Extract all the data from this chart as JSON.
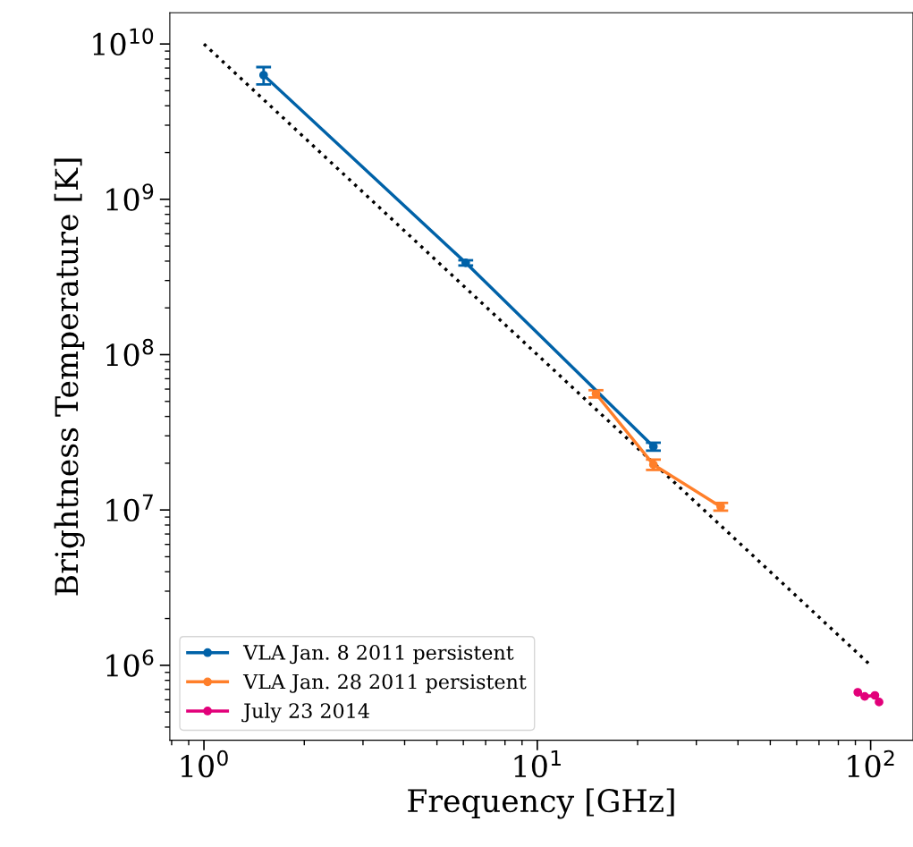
{
  "chart_data": {
    "type": "line",
    "xlabel": "Frequency [GHz]",
    "ylabel": "Brightness Temperature [K]",
    "log": "xy",
    "legend": "bottom left",
    "marker": "circle",
    "grid": false,
    "xlim": [
      0.79,
      134
    ],
    "ylim": [
      329000,
      15900000000
    ],
    "xticks": [
      {
        "value": 1,
        "label": "10$^{0}$"
      },
      {
        "value": 10,
        "label": "10$^{1}$"
      },
      {
        "value": 100,
        "label": "10$^{2}$"
      }
    ],
    "yticks": [
      {
        "value": 1000000,
        "label": "10$^{6}$"
      },
      {
        "value": 10000000,
        "label": "10$^{7}$"
      },
      {
        "value": 100000000,
        "label": "10$^{8}$"
      },
      {
        "value": 1000000000,
        "label": "10$^{9}$"
      },
      {
        "value": 10000000000,
        "label": "10$^{10}$"
      }
    ],
    "series": [
      {
        "name": "VLA Jan. 8 2011 persistent",
        "color": "#0062a8",
        "x": [
          1.51,
          6.1,
          22.3
        ],
        "values": [
          6300000000,
          390000000,
          25600000
        ],
        "errors": [
          800000000,
          15000000,
          1500000
        ]
      },
      {
        "name": "VLA Jan. 28 2011 persistent",
        "color": "#ff7f2a",
        "x": [
          15.0,
          22.3,
          35.5
        ],
        "values": [
          56000000,
          19600000,
          10500000
        ],
        "errors": [
          3000000,
          1500000,
          600000
        ]
      },
      {
        "name": "July 23 2014",
        "color": "#e2007a",
        "x": [
          91.5,
          96,
          103,
          106
        ],
        "values": [
          670000,
          630000,
          640000,
          580000
        ]
      },
      {
        "color": "#000000",
        "x": [
          1,
          100
        ],
        "values": [
          10000000000,
          1000000
        ],
        "line_style": "dotted",
        "marker": "none"
      }
    ]
  }
}
